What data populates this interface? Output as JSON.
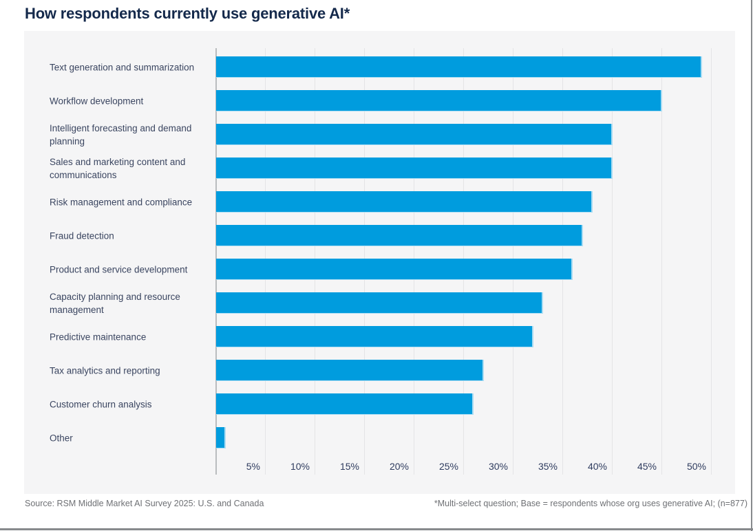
{
  "page": {
    "title": "How respondents currently use generative AI*"
  },
  "footer": {
    "source": "Source: RSM Middle Market AI Survey 2025: U.S. and Canada",
    "note": "*Multi-select question; Base = respondents whose org uses generative AI; (n=877)"
  },
  "colors": {
    "bar": "#009cde",
    "title_text": "#14294b",
    "category_text": "#3a4560",
    "tick_text": "#2e3b5e",
    "panel_background": "#f5f5f6",
    "gridline": "#e4e4e6",
    "axis_line": "#b9bcbe",
    "footer_text": "#6e7074",
    "border_line": "#87898c"
  },
  "chart_data": {
    "type": "bar",
    "orientation": "horizontal",
    "title": "How respondents currently use generative AI*",
    "categories": [
      "Text generation and summarization",
      "Workflow development",
      "Intelligent forecasting and demand planning",
      "Sales and marketing content and communications",
      "Risk management and compliance",
      "Fraud detection",
      "Product and service development",
      "Capacity planning and resource management",
      "Predictive maintenance",
      "Tax analytics and reporting",
      "Customer churn analysis",
      "Other"
    ],
    "values": [
      49,
      45,
      40,
      40,
      38,
      37,
      36,
      33,
      32,
      27,
      26,
      1
    ],
    "unit": "%",
    "xlabel": "",
    "ylabel": "",
    "xlim": [
      0,
      50
    ],
    "x_tick_values": [
      5,
      10,
      15,
      20,
      25,
      30,
      35,
      40,
      45,
      50
    ],
    "x_ticks": [
      "5%",
      "10%",
      "15%",
      "20%",
      "25%",
      "30%",
      "35%",
      "40%",
      "45%",
      "50%"
    ],
    "grid": "vertical-gridlines-on",
    "legend": "none",
    "value_labels_shown": false
  }
}
